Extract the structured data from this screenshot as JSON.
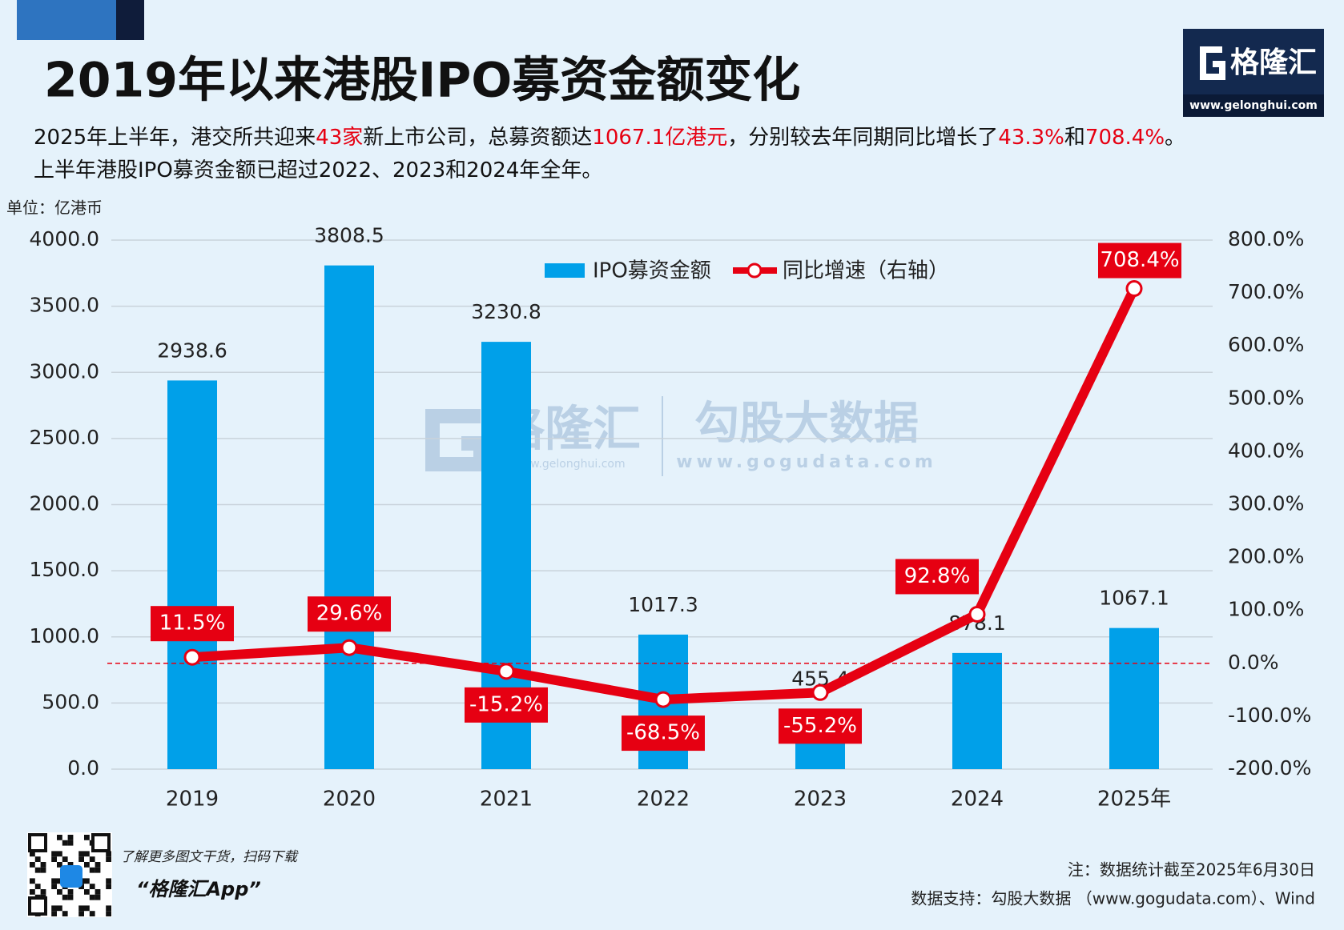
{
  "chart_data": {
    "type": "bar-line",
    "title": "2019年以来港股IPO募资金额变化",
    "subtitle": [
      [
        {
          "text": "2025年上半年，港交所共迎来",
          "color": "#111111"
        },
        {
          "text": "43家",
          "color": "#e60012"
        },
        {
          "text": "新上市公司，总募资额达",
          "color": "#111111"
        },
        {
          "text": "1067.1亿港元",
          "color": "#e60012"
        },
        {
          "text": "，分别较去年同期同比增长了",
          "color": "#111111"
        },
        {
          "text": "43.3%",
          "color": "#e60012"
        },
        {
          "text": "和",
          "color": "#111111"
        },
        {
          "text": "708.4%",
          "color": "#e60012"
        },
        {
          "text": "。",
          "color": "#111111"
        }
      ],
      [
        {
          "text": "上半年港股IPO募资金额已超过2022、2023和2024年全年。",
          "color": "#111111"
        }
      ]
    ],
    "y_unit": "单位：亿港币",
    "categories": [
      "2019",
      "2020",
      "2021",
      "2022",
      "2023",
      "2024",
      "2025年"
    ],
    "series": [
      {
        "name": "IPO募资金额",
        "color": "#00a0e9",
        "values": [
          2938.6,
          3808.5,
          3230.8,
          1017.3,
          455.4,
          878.1,
          1067.1
        ]
      },
      {
        "name": "同比增速（右轴）",
        "color": "#e60012",
        "axis": "y2",
        "values": [
          11.5,
          29.6,
          -15.2,
          -68.5,
          -55.2,
          92.8,
          708.4
        ],
        "value_labels": [
          "11.5%",
          "29.6%",
          "-15.2%",
          "-68.5%",
          "-55.2%",
          "92.8%",
          "708.4%"
        ]
      }
    ],
    "ylim": [
      0,
      4000
    ],
    "yticks": [
      {
        "value": 0,
        "label": "0.0"
      },
      {
        "value": 500,
        "label": "500.0"
      },
      {
        "value": 1000,
        "label": "1000.0"
      },
      {
        "value": 1500,
        "label": "1500.0"
      },
      {
        "value": 2000,
        "label": "2000.0"
      },
      {
        "value": 2500,
        "label": "2500.0"
      },
      {
        "value": 3000,
        "label": "3000.0"
      },
      {
        "value": 3500,
        "label": "3500.0"
      },
      {
        "value": 4000,
        "label": "4000.0"
      }
    ],
    "y2lim": [
      -200,
      800
    ],
    "y2ticks": [
      {
        "value": -200,
        "label": "-200.0%"
      },
      {
        "value": -100,
        "label": "-100.0%"
      },
      {
        "value": 0,
        "label": "0.0%"
      },
      {
        "value": 100,
        "label": "100.0%"
      },
      {
        "value": 200,
        "label": "200.0%"
      },
      {
        "value": 300,
        "label": "300.0%"
      },
      {
        "value": 400,
        "label": "400.0%"
      },
      {
        "value": 500,
        "label": "500.0%"
      },
      {
        "value": 600,
        "label": "600.0%"
      },
      {
        "value": 700,
        "label": "700.0%"
      },
      {
        "value": 800,
        "label": "800.0%"
      }
    ],
    "grid": true
  },
  "branding": {
    "logo": "格隆汇",
    "site": "www.gelonghui.com",
    "watermark_logo": "格隆汇",
    "watermark_site": "www.gelonghui.com",
    "watermark_brand": "勾股大数据",
    "watermark_brand_site": "www.gogudata.com"
  },
  "footer": {
    "qr_caption": "了解更多图文干货，扫码下载",
    "app_name": "“格隆汇App”",
    "note": "注：数据统计截至2025年6月30日",
    "source": "数据支持：勾股大数据 （www.gogudata.com）、Wind"
  }
}
